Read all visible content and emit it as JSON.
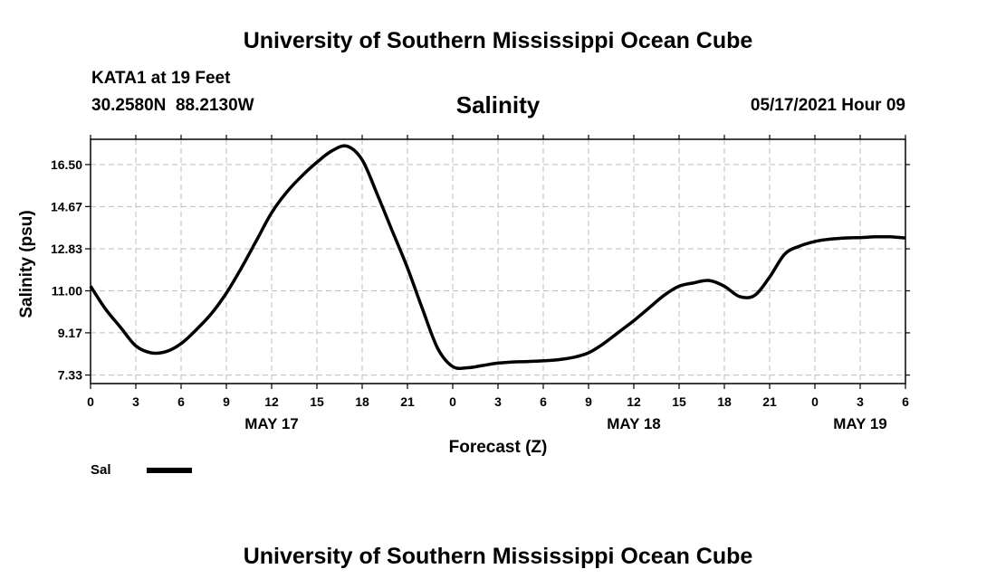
{
  "header": {
    "title": "University of Southern Mississippi Ocean Cube",
    "station": "KATA1 at 19 Feet",
    "coords": "30.2580N  88.2130W",
    "date": "05/17/2021 Hour 09"
  },
  "footer": {
    "title": "University of Southern Mississippi Ocean Cube"
  },
  "chart_data": {
    "type": "line",
    "title": "Salinity",
    "xlabel": "Forecast (Z)",
    "ylabel": "Salinity (psu)",
    "xlim": [
      0,
      54
    ],
    "ylim": [
      6.96,
      17.6
    ],
    "y_ticks": [
      "7.33",
      "9.17",
      "11.00",
      "12.83",
      "14.67",
      "16.50"
    ],
    "x_tick_hours": [
      0,
      3,
      6,
      9,
      12,
      15,
      18,
      21,
      24,
      27,
      30,
      33,
      36,
      39,
      42,
      45,
      48,
      51,
      54
    ],
    "x_tick_labels": [
      "0",
      "3",
      "6",
      "9",
      "12",
      "15",
      "18",
      "21",
      "0",
      "3",
      "6",
      "9",
      "12",
      "15",
      "18",
      "21",
      "0",
      "3",
      "6"
    ],
    "day_labels": [
      {
        "label": "MAY 17",
        "hour": 12
      },
      {
        "label": "MAY 18",
        "hour": 36
      },
      {
        "label": "MAY 19",
        "hour": 51
      }
    ],
    "grid": true,
    "legend": {
      "position": "bottom-left"
    },
    "series": [
      {
        "name": "Sal",
        "color": "#000000",
        "x": [
          0,
          1,
          2,
          3,
          4,
          5,
          6,
          7,
          8,
          9,
          10,
          11,
          12,
          13,
          14,
          15,
          16,
          17,
          18,
          19,
          20,
          21,
          22,
          23,
          24,
          25,
          26,
          27,
          28,
          29,
          30,
          31,
          32,
          33,
          34,
          35,
          36,
          37,
          38,
          39,
          40,
          41,
          42,
          43,
          44,
          45,
          46,
          47,
          48,
          49,
          50,
          51,
          52,
          53,
          54
        ],
        "values": [
          11.2,
          10.2,
          9.4,
          8.6,
          8.3,
          8.35,
          8.7,
          9.3,
          10.0,
          10.9,
          12.0,
          13.2,
          14.4,
          15.3,
          16.0,
          16.6,
          17.1,
          17.3,
          16.7,
          15.2,
          13.6,
          12.0,
          10.2,
          8.5,
          7.7,
          7.65,
          7.75,
          7.85,
          7.9,
          7.92,
          7.95,
          8.0,
          8.1,
          8.3,
          8.7,
          9.2,
          9.7,
          10.25,
          10.8,
          11.2,
          11.35,
          11.45,
          11.2,
          10.75,
          10.8,
          11.6,
          12.6,
          12.95,
          13.15,
          13.25,
          13.3,
          13.32,
          13.35,
          13.35,
          13.3
        ]
      }
    ]
  }
}
